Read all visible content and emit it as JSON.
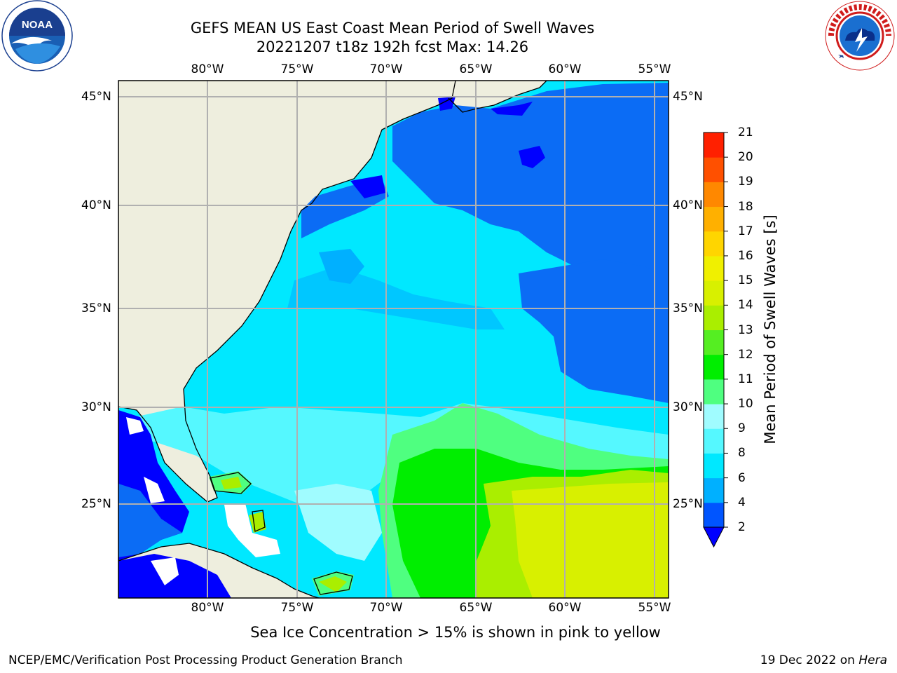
{
  "header": {
    "title_line1": "GEFS MEAN US East Coast Mean Period of Swell Waves",
    "title_line2": "20221207 t18z 192h fcst   Max: 14.26"
  },
  "logos": {
    "left": "noaa-logo",
    "right": "nws-logo"
  },
  "map": {
    "lon_labels": [
      "80°W",
      "75°W",
      "70°W",
      "65°W",
      "60°W",
      "55°W"
    ],
    "lat_labels": [
      "45°N",
      "40°N",
      "35°N",
      "30°N",
      "25°N"
    ],
    "lat_labels_right": [
      "45°N",
      "40°N",
      "35°N",
      "30°N",
      "25°N"
    ]
  },
  "colorbar": {
    "label": "Mean Period of Swell Waves [s]",
    "ticks": [
      "2",
      "4",
      "6",
      "8",
      "9",
      "10",
      "11",
      "12",
      "13",
      "14",
      "15",
      "16",
      "17",
      "18",
      "19",
      "20",
      "21"
    ],
    "colors": [
      "#0055ff",
      "#00b0ff",
      "#00e8ff",
      "#55f8ff",
      "#a0fcff",
      "#4fff80",
      "#00ee00",
      "#55ee22",
      "#aaee00",
      "#d8f000",
      "#f0f000",
      "#ffd500",
      "#ffb000",
      "#ff8800",
      "#ff5000",
      "#ff2000"
    ],
    "under_color": "#0000ff"
  },
  "caption": "Sea Ice Concentration > 15% is shown in pink to yellow",
  "footer": {
    "left": "NCEP/EMC/Verification Post Processing Product Generation Branch",
    "right_date": "19 Dec 2022 on ",
    "right_host": "Hera"
  }
}
